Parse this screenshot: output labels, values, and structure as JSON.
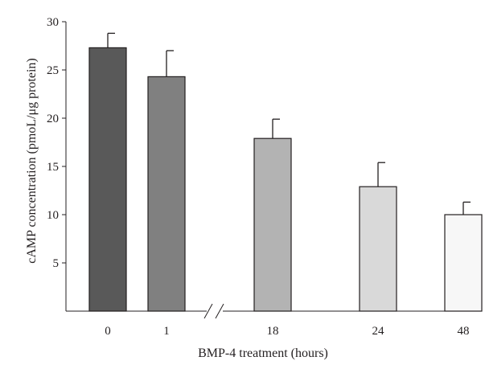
{
  "chart_data": {
    "type": "bar",
    "categories": [
      "0",
      "1",
      "18",
      "24",
      "48"
    ],
    "values": [
      27.3,
      24.3,
      17.9,
      12.9,
      10.0
    ],
    "error_upper": [
      1.5,
      2.7,
      2.0,
      2.5,
      1.3
    ],
    "bar_colors": [
      "#595959",
      "#808080",
      "#b3b3b3",
      "#d9d9d9",
      "#f7f7f7"
    ],
    "xlabel": "BMP-4 treatment (hours)",
    "ylabel": "cAMP concentration (pmoL/μg protein)",
    "ylim": [
      0,
      30
    ],
    "yticks": [
      5,
      10,
      15,
      20,
      25,
      30
    ],
    "axis_break": "between 1 and 18",
    "grid": false,
    "legend": "none"
  }
}
